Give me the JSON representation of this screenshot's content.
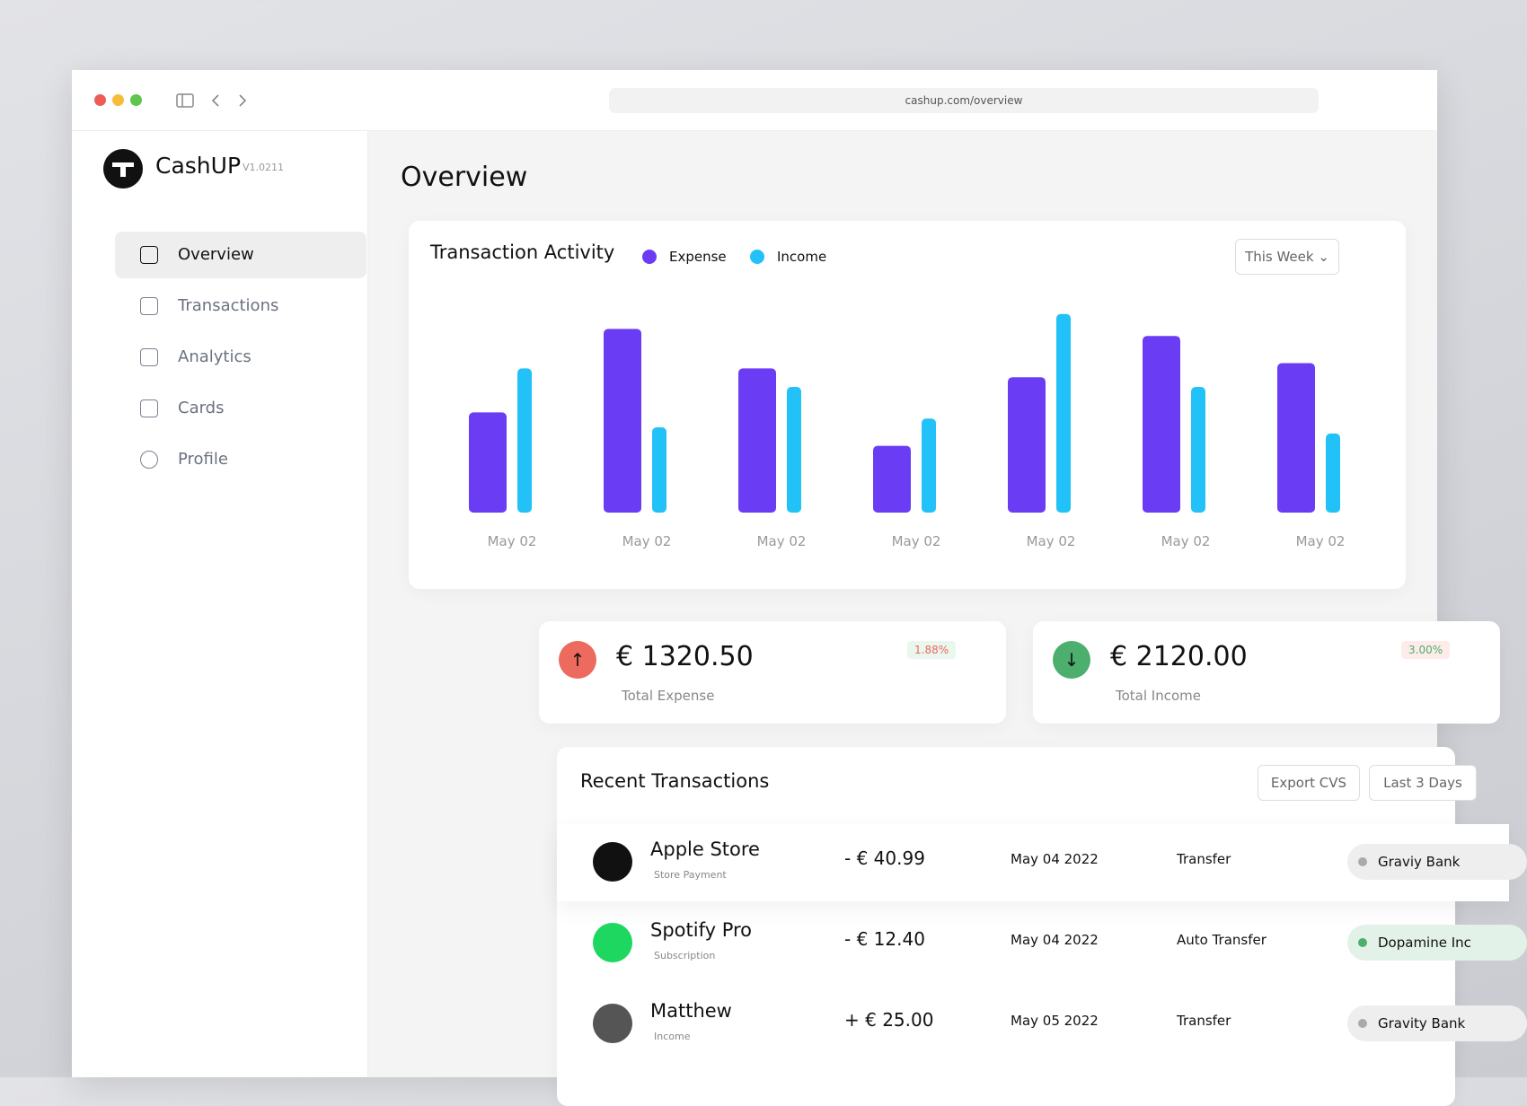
{
  "browser": {
    "url": "cashup.com/overview"
  },
  "sidebar": {
    "brand": "CashUP",
    "version": "V1.0211",
    "nav": [
      "Overview",
      "Transactions",
      "Analytics",
      "Cards",
      "Profile"
    ]
  },
  "page_title": "Overview",
  "chart_data": {
    "type": "bar",
    "title": "Transaction Activity",
    "filter": "This Week",
    "categories": [
      "May 02",
      "May 02",
      "May 02",
      "May 02",
      "May 02",
      "May 02",
      "May 02"
    ],
    "series": [
      {
        "name": "Expense",
        "color": "#6a3df5",
        "values": [
          114,
          209,
          164,
          76,
          154,
          201,
          170
        ]
      },
      {
        "name": "Income",
        "color": "#22c1f7",
        "values": [
          164,
          97,
          143,
          107,
          226,
          143,
          90
        ]
      }
    ],
    "ylim": [
      0,
      240
    ]
  },
  "stats": [
    {
      "amount": "€ 1320.50",
      "label": "Total Expense",
      "change": "1.88%"
    },
    {
      "amount": "€ 2120.00",
      "label": "Total Income",
      "change": "3.00%"
    }
  ],
  "transactions": {
    "title": "Recent Transactions",
    "buttons": [
      "Export CVS",
      "Last 3 Days"
    ],
    "rows": [
      {
        "name": "Apple Store",
        "sub": "Store Payment",
        "amount": "- € 40.99",
        "date": "May 04 2022",
        "type": "Transfer",
        "bank": "Graviy Bank"
      },
      {
        "name": "Spotify Pro",
        "sub": "Subscription",
        "amount": "- € 12.40",
        "date": "May 04 2022",
        "type": "Auto Transfer",
        "bank": "Dopamine Inc"
      },
      {
        "name": "Matthew",
        "sub": "Income",
        "amount": "+ € 25.00",
        "date": "May 05 2022",
        "type": "Transfer",
        "bank": "Gravity Bank"
      }
    ]
  }
}
